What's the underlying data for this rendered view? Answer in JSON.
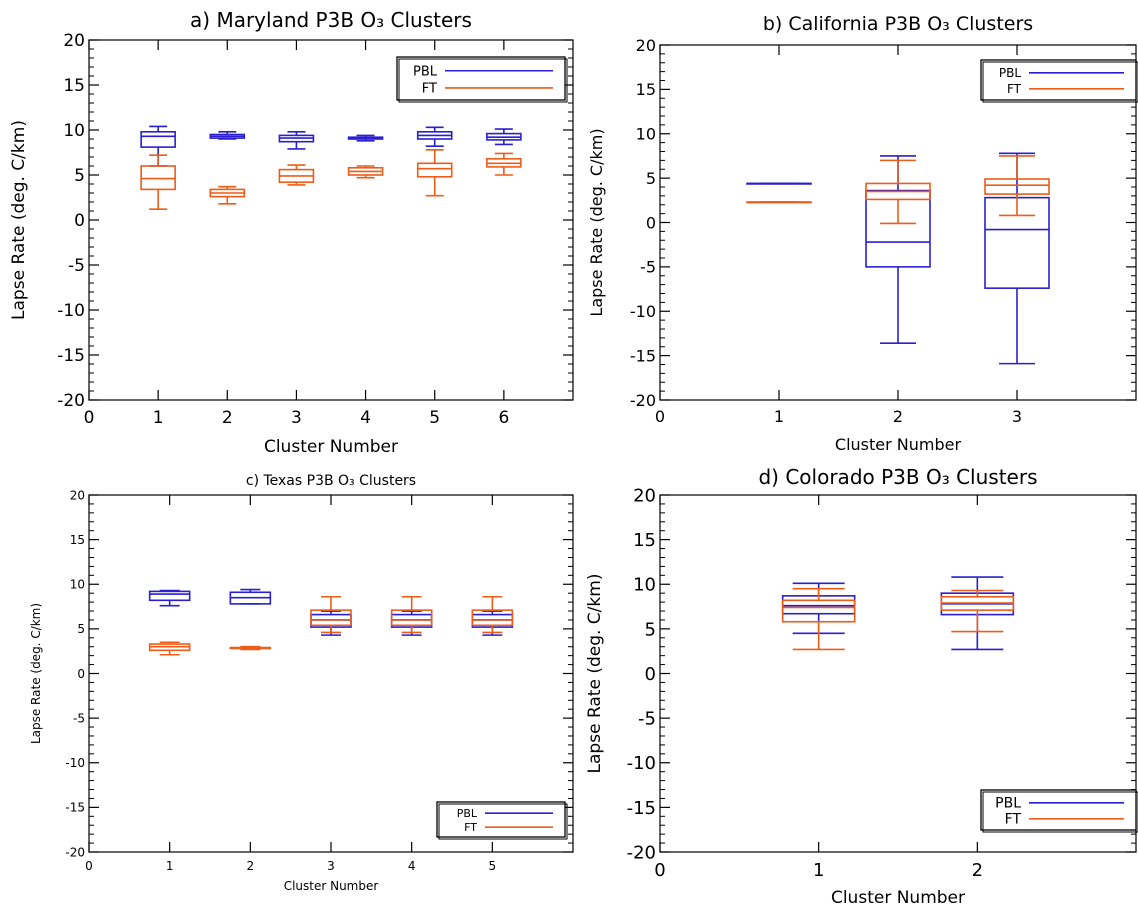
{
  "colors": {
    "pbl": "#2a1fd0",
    "ft": "#ee5c18",
    "axis": "#000000",
    "background": "#ffffff"
  },
  "chart_data": [
    {
      "type": "boxplot",
      "title": "a) Maryland P3B O₃ Clusters",
      "xlabel": "Cluster Number",
      "ylabel": "Lapse Rate (deg. C/km)",
      "xlim": [
        0,
        7
      ],
      "ylim": [
        -20,
        20
      ],
      "xticks": [
        "0",
        "1",
        "2",
        "3",
        "4",
        "5",
        "6"
      ],
      "yticks": [
        "-20",
        "-15",
        "-10",
        "-5",
        "0",
        "5",
        "10",
        "15",
        "20"
      ],
      "legend": {
        "position": "top-right",
        "entries": [
          "PBL",
          "FT"
        ]
      },
      "series": [
        {
          "name": "PBL",
          "color": "pbl",
          "boxes": [
            {
              "x": 1,
              "min": 6.0,
              "q1": 8.1,
              "median": 9.3,
              "q3": 9.8,
              "max": 10.4
            },
            {
              "x": 2,
              "min": 9.0,
              "q1": 9.1,
              "median": 9.3,
              "q3": 9.5,
              "max": 9.8
            },
            {
              "x": 3,
              "min": 7.9,
              "q1": 8.7,
              "median": 9.1,
              "q3": 9.4,
              "max": 9.8
            },
            {
              "x": 4,
              "min": 8.8,
              "q1": 9.0,
              "median": 9.1,
              "q3": 9.2,
              "max": 9.4
            },
            {
              "x": 5,
              "min": 8.2,
              "q1": 9.0,
              "median": 9.4,
              "q3": 9.8,
              "max": 10.3
            },
            {
              "x": 6,
              "min": 8.4,
              "q1": 8.9,
              "median": 9.2,
              "q3": 9.6,
              "max": 10.1
            }
          ]
        },
        {
          "name": "FT",
          "color": "ft",
          "boxes": [
            {
              "x": 1,
              "min": 1.2,
              "q1": 3.4,
              "median": 4.6,
              "q3": 6.0,
              "max": 7.2
            },
            {
              "x": 2,
              "min": 1.8,
              "q1": 2.6,
              "median": 3.0,
              "q3": 3.4,
              "max": 3.7
            },
            {
              "x": 3,
              "min": 3.9,
              "q1": 4.2,
              "median": 4.9,
              "q3": 5.6,
              "max": 6.1
            },
            {
              "x": 4,
              "min": 4.7,
              "q1": 5.0,
              "median": 5.4,
              "q3": 5.8,
              "max": 6.0
            },
            {
              "x": 5,
              "min": 2.7,
              "q1": 4.8,
              "median": 5.7,
              "q3": 6.3,
              "max": 7.8
            },
            {
              "x": 6,
              "min": 5.0,
              "q1": 5.9,
              "median": 6.3,
              "q3": 6.8,
              "max": 7.4
            }
          ]
        }
      ]
    },
    {
      "type": "boxplot",
      "title": "b) California P3B O₃ Clusters",
      "xlabel": "Cluster Number",
      "ylabel": "Lapse Rate (deg. C/km)",
      "xlim": [
        0,
        4
      ],
      "ylim": [
        -20,
        20
      ],
      "xticks": [
        "0",
        "1",
        "2",
        "3"
      ],
      "yticks": [
        "-20",
        "-15",
        "-10",
        "-5",
        "0",
        "5",
        "10",
        "15",
        "20"
      ],
      "legend": {
        "position": "top-right",
        "entries": [
          "PBL",
          "FT"
        ]
      },
      "series": [
        {
          "name": "PBL",
          "color": "pbl",
          "boxes": [
            {
              "x": 1,
              "min": 4.4,
              "q1": 4.4,
              "median": 4.4,
              "q3": 4.4,
              "max": 4.4
            },
            {
              "x": 2,
              "min": -13.6,
              "q1": -5.0,
              "median": -2.2,
              "q3": 3.6,
              "max": 7.5
            },
            {
              "x": 3,
              "min": -15.9,
              "q1": -7.4,
              "median": -0.8,
              "q3": 2.8,
              "max": 7.8
            }
          ]
        },
        {
          "name": "FT",
          "color": "ft",
          "boxes": [
            {
              "x": 1,
              "min": 2.3,
              "q1": 2.3,
              "median": 2.3,
              "q3": 2.3,
              "max": 2.3
            },
            {
              "x": 2,
              "min": -0.1,
              "q1": 2.6,
              "median": 3.5,
              "q3": 4.4,
              "max": 7.0
            },
            {
              "x": 3,
              "min": 0.8,
              "q1": 3.2,
              "median": 4.2,
              "q3": 4.9,
              "max": 7.5
            }
          ]
        }
      ]
    },
    {
      "type": "boxplot",
      "title": "c) Texas P3B O₃ Clusters",
      "xlabel": "Cluster Number",
      "ylabel": "Lapse Rate (deg. C/km)",
      "xlim": [
        0,
        6
      ],
      "ylim": [
        -20,
        20
      ],
      "xticks": [
        "0",
        "1",
        "2",
        "3",
        "4",
        "5"
      ],
      "yticks": [
        "-20",
        "-15",
        "-10",
        "-5",
        "0",
        "5",
        "10",
        "15",
        "20"
      ],
      "legend": {
        "position": "bottom-right",
        "entries": [
          "PBL",
          "FT"
        ]
      },
      "series": [
        {
          "name": "PBL",
          "color": "pbl",
          "boxes": [
            {
              "x": 1,
              "min": 7.6,
              "q1": 8.2,
              "median": 8.9,
              "q3": 9.2,
              "max": 9.3
            },
            {
              "x": 2,
              "min": 7.8,
              "q1": 7.8,
              "median": 8.5,
              "q3": 9.1,
              "max": 9.4
            },
            {
              "x": 3,
              "min": 4.3,
              "q1": 5.2,
              "median": 6.0,
              "q3": 6.6,
              "max": 7.0
            },
            {
              "x": 4,
              "min": 4.3,
              "q1": 5.2,
              "median": 6.0,
              "q3": 6.6,
              "max": 7.0
            },
            {
              "x": 5,
              "min": 4.3,
              "q1": 5.2,
              "median": 6.0,
              "q3": 6.6,
              "max": 7.0
            }
          ]
        },
        {
          "name": "FT",
          "color": "ft",
          "boxes": [
            {
              "x": 1,
              "min": 2.1,
              "q1": 2.6,
              "median": 3.0,
              "q3": 3.3,
              "max": 3.5
            },
            {
              "x": 2,
              "min": 2.7,
              "q1": 2.8,
              "median": 2.9,
              "q3": 2.9,
              "max": 3.0
            },
            {
              "x": 3,
              "min": 4.6,
              "q1": 5.4,
              "median": 6.0,
              "q3": 7.1,
              "max": 8.6
            },
            {
              "x": 4,
              "min": 4.6,
              "q1": 5.4,
              "median": 6.0,
              "q3": 7.1,
              "max": 8.6
            },
            {
              "x": 5,
              "min": 4.6,
              "q1": 5.4,
              "median": 6.0,
              "q3": 7.1,
              "max": 8.6
            }
          ]
        }
      ]
    },
    {
      "type": "boxplot",
      "title": "d) Colorado P3B O₃ Clusters",
      "xlabel": "Cluster Number",
      "ylabel": "Lapse Rate (deg. C/km)",
      "xlim": [
        0,
        3
      ],
      "ylim": [
        -20,
        20
      ],
      "xticks": [
        "0",
        "1",
        "2"
      ],
      "yticks": [
        "-20",
        "-15",
        "-10",
        "-5",
        "0",
        "5",
        "10",
        "15",
        "20"
      ],
      "legend": {
        "position": "bottom-right",
        "entries": [
          "PBL",
          "FT"
        ]
      },
      "series": [
        {
          "name": "PBL",
          "color": "pbl",
          "boxes": [
            {
              "x": 1,
              "min": 4.5,
              "q1": 6.7,
              "median": 7.6,
              "q3": 8.7,
              "max": 10.1
            },
            {
              "x": 2,
              "min": 2.7,
              "q1": 6.6,
              "median": 7.8,
              "q3": 9.0,
              "max": 10.8
            }
          ]
        },
        {
          "name": "FT",
          "color": "ft",
          "boxes": [
            {
              "x": 1,
              "min": 2.7,
              "q1": 5.8,
              "median": 7.4,
              "q3": 8.2,
              "max": 9.5
            },
            {
              "x": 2,
              "min": 4.7,
              "q1": 7.1,
              "median": 7.9,
              "q3": 8.6,
              "max": 9.3
            }
          ]
        }
      ]
    }
  ]
}
